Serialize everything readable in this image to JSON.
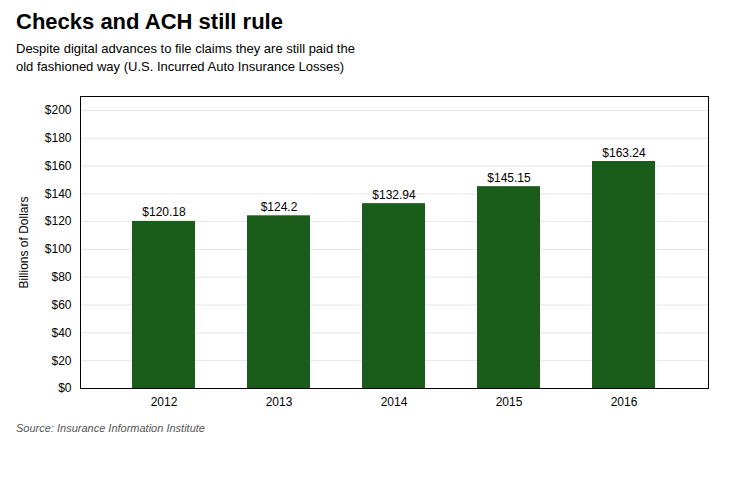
{
  "chart_data": {
    "type": "bar",
    "title": "Checks and ACH still rule",
    "subtitle": [
      "Despite digital advances to file claims they are still paid the",
      "old fashioned way (U.S. Incurred Auto Insurance Losses)"
    ],
    "source": "Source: Insurance Information Institute",
    "categories": [
      "2012",
      "2013",
      "2014",
      "2015",
      "2016"
    ],
    "values": [
      120.18,
      124.2,
      132.94,
      145.15,
      163.24
    ],
    "value_labels": [
      "$120.18",
      "$124.2",
      "$132.94",
      "$145.15",
      "$163.24"
    ],
    "data_labels": true,
    "color": "#1a5c1a",
    "ylabel": "Billions of Dollars",
    "ylim": [
      0,
      210
    ],
    "yticks": [
      {
        "value": 0,
        "label": "$0"
      },
      {
        "value": 20,
        "label": "$20"
      },
      {
        "value": 40,
        "label": "$40"
      },
      {
        "value": 60,
        "label": "$60"
      },
      {
        "value": 80,
        "label": "$80"
      },
      {
        "value": 100,
        "label": "$100"
      },
      {
        "value": 120,
        "label": "$120"
      },
      {
        "value": 140,
        "label": "$140"
      },
      {
        "value": 160,
        "label": "$160"
      },
      {
        "value": 180,
        "label": "$180"
      },
      {
        "value": 200,
        "label": "$200"
      }
    ],
    "grid": true
  }
}
